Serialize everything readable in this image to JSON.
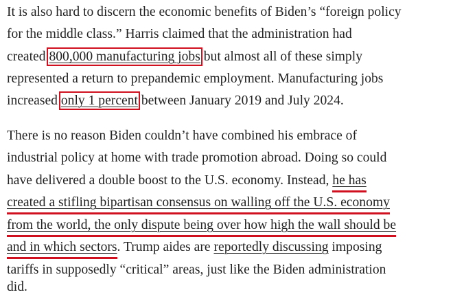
{
  "paragraphs": [
    {
      "lines": [
        [
          "It is also hard to discern the economic benefits of Biden’s “foreign policy"
        ],
        [
          "for the middle class.” Harris claimed that the administration had"
        ],
        [
          "created ",
          "800,000 manufacturing jobs",
          " but almost all of these simply"
        ],
        [
          "represented a return to prepandemic employment. Manufacturing jobs"
        ],
        [
          "increased ",
          "only 1 percent",
          " between January 2019 and July 2024."
        ]
      ]
    },
    {
      "lines": [
        [
          "There is no reason Biden couldn’t have combined his embrace of"
        ],
        [
          "industrial policy at home with trade promotion abroad. Doing so could"
        ],
        [
          "have delivered a double boost to the U.S. economy. Instead, ",
          "he has"
        ],
        [
          "created a stifling bipartisan consensus on walling off the U.S. economy"
        ],
        [
          "from the world, the only dispute being over how high the wall should be"
        ],
        [
          "and in which sectors",
          ". Trump aides are ",
          "reportedly discussing",
          " imposing"
        ],
        [
          "tariffs in supposedly “critical” areas, just like the Biden administration"
        ],
        [
          "did."
        ]
      ]
    }
  ]
}
